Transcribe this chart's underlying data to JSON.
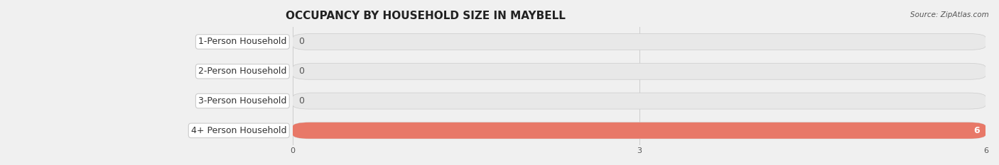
{
  "title": "OCCUPANCY BY HOUSEHOLD SIZE IN MAYBELL",
  "source": "Source: ZipAtlas.com",
  "categories": [
    "1-Person Household",
    "2-Person Household",
    "3-Person Household",
    "4+ Person Household"
  ],
  "values": [
    0,
    0,
    0,
    6
  ],
  "bar_colors": [
    "#a8b4d8",
    "#f0a0b0",
    "#f0c888",
    "#e87868"
  ],
  "label_bg_color": "#ffffff",
  "background_color": "#f0f0f0",
  "xlim": [
    0,
    6
  ],
  "xticks": [
    0,
    3,
    6
  ],
  "bar_height": 0.55,
  "title_fontsize": 11,
  "label_fontsize": 9,
  "value_fontsize": 9
}
